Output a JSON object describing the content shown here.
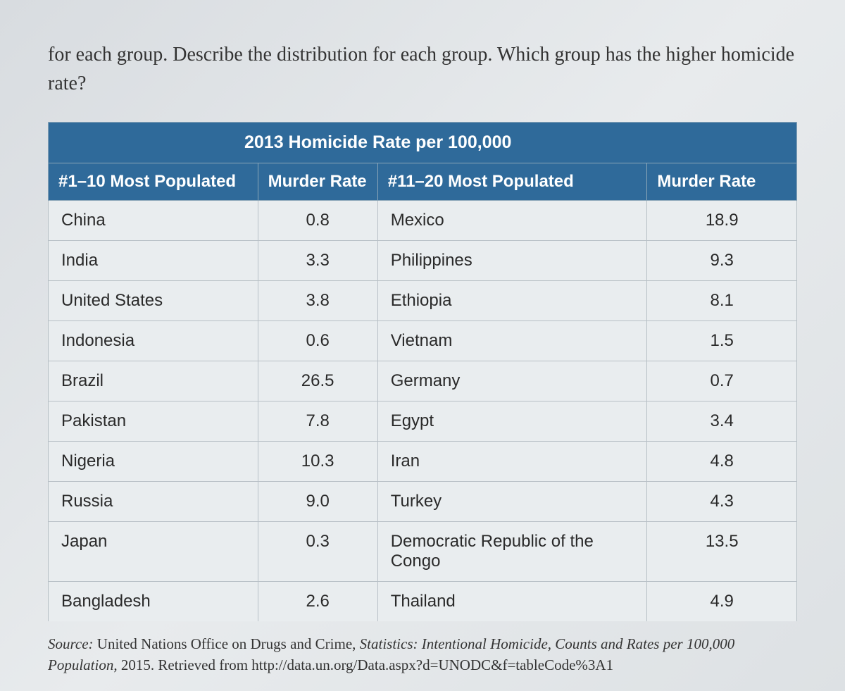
{
  "question_text": "for each group. Describe the distribution for each group. Which group has the higher homicide rate?",
  "table": {
    "title": "2013 Homicide Rate per 100,000",
    "header_bg": "#2f6a9a",
    "header_fg": "#ffffff",
    "cell_bg": "#e9edef",
    "border_color": "#b8c0c6",
    "columns": [
      "#1–10 Most Populated",
      "Murder Rate",
      "#11–20 Most Populated",
      "Murder Rate"
    ],
    "rows": [
      {
        "c1": "China",
        "r1": "0.8",
        "c2": "Mexico",
        "r2": "18.9"
      },
      {
        "c1": "India",
        "r1": "3.3",
        "c2": "Philippines",
        "r2": "9.3"
      },
      {
        "c1": "United States",
        "r1": "3.8",
        "c2": "Ethiopia",
        "r2": "8.1"
      },
      {
        "c1": "Indonesia",
        "r1": "0.6",
        "c2": "Vietnam",
        "r2": "1.5"
      },
      {
        "c1": "Brazil",
        "r1": "26.5",
        "c2": "Germany",
        "r2": "0.7"
      },
      {
        "c1": "Pakistan",
        "r1": "7.8",
        "c2": "Egypt",
        "r2": "3.4"
      },
      {
        "c1": "Nigeria",
        "r1": "10.3",
        "c2": "Iran",
        "r2": "4.8"
      },
      {
        "c1": "Russia",
        "r1": "9.0",
        "c2": "Turkey",
        "r2": "4.3"
      },
      {
        "c1": "Japan",
        "r1": "0.3",
        "c2": "Democratic Republic of the Congo",
        "r2": "13.5"
      },
      {
        "c1": "Bangladesh",
        "r1": "2.6",
        "c2": "Thailand",
        "r2": "4.9"
      }
    ]
  },
  "source": {
    "label": "Source:",
    "text_plain_1": " United Nations Office on Drugs and Crime, ",
    "text_italic": "Statistics: Intentional Homicide, Counts and Rates per 100,000 Population,",
    "text_plain_2": " 2015. Retrieved from http://data.un.org/Data.aspx?d=UNODC&f=tableCode%3A1"
  }
}
